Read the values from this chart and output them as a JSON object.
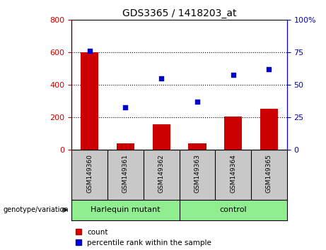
{
  "title": "GDS3365 / 1418203_at",
  "samples": [
    "GSM149360",
    "GSM149361",
    "GSM149362",
    "GSM149363",
    "GSM149364",
    "GSM149365"
  ],
  "counts": [
    600,
    40,
    160,
    40,
    205,
    255
  ],
  "percentiles": [
    76,
    33,
    55,
    37,
    58,
    62
  ],
  "groups": [
    {
      "label": "Harlequin mutant",
      "span": [
        0,
        2
      ]
    },
    {
      "label": "control",
      "span": [
        3,
        5
      ]
    }
  ],
  "group_label": "genotype/variation",
  "left_ylim": [
    0,
    800
  ],
  "right_ylim": [
    0,
    100
  ],
  "left_yticks": [
    0,
    200,
    400,
    600,
    800
  ],
  "right_yticks": [
    0,
    25,
    50,
    75,
    100
  ],
  "left_yticklabels": [
    "0",
    "200",
    "400",
    "600",
    "800"
  ],
  "right_yticklabels": [
    "0",
    "25",
    "50",
    "75",
    "100%"
  ],
  "bar_color": "#CC0000",
  "scatter_color": "#0000CC",
  "background_color": "#ffffff",
  "label_area_color": "#C8C8C8",
  "group_area_color": "#90EE90",
  "legend_count_label": "count",
  "legend_pct_label": "percentile rank within the sample",
  "grid_lines": [
    200,
    400,
    600
  ]
}
